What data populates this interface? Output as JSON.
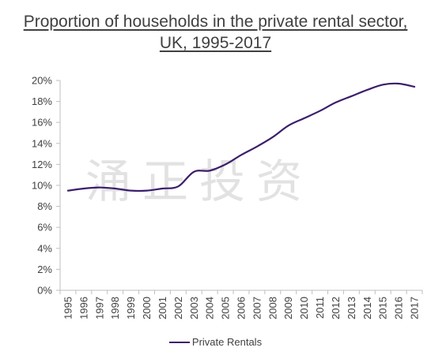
{
  "title_line1": "Proportion of households in the private rental sector,",
  "title_line2": "UK,  1995-2017",
  "watermark_text": "涌正投资",
  "legend_label": "Private Rentals",
  "chart_data": {
    "type": "line",
    "title": "Proportion of households in the private rental sector, UK,  1995-2017",
    "xlabel": "",
    "ylabel": "",
    "ylim": [
      0,
      20
    ],
    "y_ticks": [
      "0%",
      "2%",
      "4%",
      "6%",
      "8%",
      "10%",
      "12%",
      "14%",
      "16%",
      "18%",
      "20%"
    ],
    "grid": false,
    "legend_position": "bottom",
    "categories": [
      "1995",
      "1996",
      "1997",
      "1998",
      "1999",
      "2000",
      "2001",
      "2002",
      "2003",
      "2004",
      "2005",
      "2006",
      "2007",
      "2008",
      "2009",
      "2010",
      "2011",
      "2012",
      "2013",
      "2014",
      "2015",
      "2016",
      "2017"
    ],
    "series": [
      {
        "name": "Private Rentals",
        "color": "#3b1e6b",
        "values": [
          9.5,
          9.7,
          9.8,
          9.7,
          9.5,
          9.5,
          9.7,
          9.9,
          11.3,
          11.4,
          12.0,
          12.9,
          13.7,
          14.6,
          15.7,
          16.4,
          17.1,
          17.9,
          18.5,
          19.1,
          19.6,
          19.7,
          19.4
        ]
      }
    ]
  }
}
